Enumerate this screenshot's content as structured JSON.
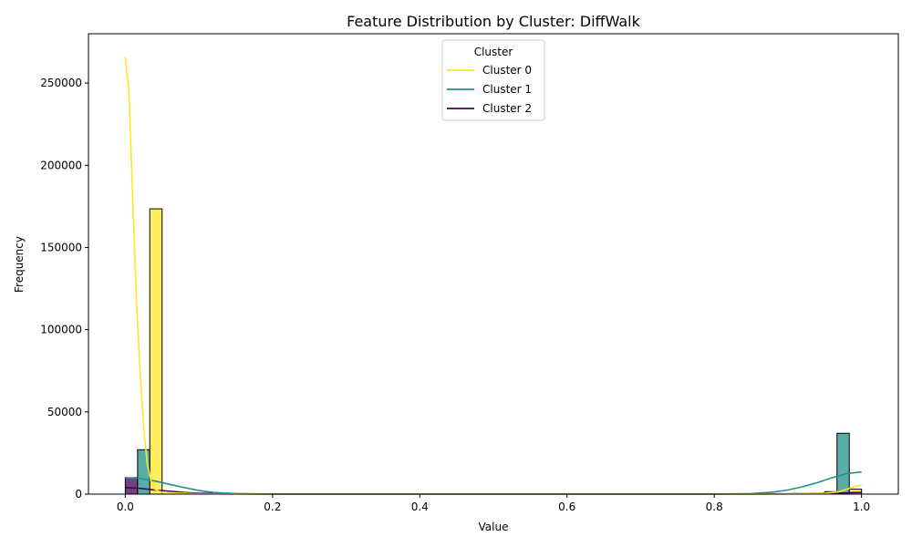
{
  "chart_data": {
    "type": "histogram",
    "title": "Feature Distribution by Cluster: DiffWalk",
    "xlabel": "Value",
    "ylabel": "Frequency",
    "xlim": [
      -0.05,
      1.05
    ],
    "ylim": [
      0,
      280000
    ],
    "x_ticks": [
      "0.0",
      "0.2",
      "0.4",
      "0.6",
      "0.8",
      "1.0"
    ],
    "y_ticks": [
      "0",
      "50000",
      "100000",
      "150000",
      "200000",
      "250000"
    ],
    "legend_title": "Cluster",
    "legend_position": "upper-center",
    "grid": false,
    "series": [
      {
        "name": "Cluster 0",
        "color": "#fde725",
        "bars": [
          {
            "x": 0.0333,
            "width": 0.0167,
            "value": 173500
          },
          {
            "x": 0.9833,
            "width": 0.0167,
            "value": 3000
          }
        ],
        "kde": [
          [
            0.0,
            266000
          ],
          [
            0.005,
            245000
          ],
          [
            0.01,
            180000
          ],
          [
            0.015,
            120000
          ],
          [
            0.02,
            75000
          ],
          [
            0.025,
            40000
          ],
          [
            0.03,
            18000
          ],
          [
            0.035,
            8000
          ],
          [
            0.04,
            3000
          ],
          [
            0.05,
            1000
          ],
          [
            0.1,
            200
          ],
          [
            0.2,
            0
          ],
          [
            0.8,
            0
          ],
          [
            0.9,
            100
          ],
          [
            0.95,
            500
          ],
          [
            0.97,
            1500
          ],
          [
            0.98,
            3000
          ],
          [
            0.99,
            4500
          ],
          [
            1.0,
            5500
          ]
        ]
      },
      {
        "name": "Cluster 1",
        "color": "#21918c",
        "bars": [
          {
            "x": 0.0167,
            "width": 0.0167,
            "value": 27000
          },
          {
            "x": 0.9667,
            "width": 0.0167,
            "value": 37000
          }
        ],
        "kde": [
          [
            0.0,
            10000
          ],
          [
            0.02,
            9500
          ],
          [
            0.04,
            8000
          ],
          [
            0.06,
            6000
          ],
          [
            0.08,
            4000
          ],
          [
            0.1,
            2200
          ],
          [
            0.12,
            1000
          ],
          [
            0.15,
            300
          ],
          [
            0.2,
            50
          ],
          [
            0.8,
            50
          ],
          [
            0.85,
            300
          ],
          [
            0.88,
            1200
          ],
          [
            0.9,
            2500
          ],
          [
            0.92,
            4500
          ],
          [
            0.94,
            7000
          ],
          [
            0.96,
            10000
          ],
          [
            0.98,
            12500
          ],
          [
            1.0,
            13500
          ]
        ]
      },
      {
        "name": "Cluster 2",
        "color": "#440154",
        "bars": [
          {
            "x": 0.0,
            "width": 0.0167,
            "value": 10000
          },
          {
            "x": 0.95,
            "width": 0.0167,
            "value": 1500
          },
          {
            "x": 0.9833,
            "width": 0.0167,
            "value": 1500
          }
        ],
        "kde": [
          [
            0.0,
            4000
          ],
          [
            0.02,
            3500
          ],
          [
            0.04,
            2500
          ],
          [
            0.06,
            1800
          ],
          [
            0.08,
            1000
          ],
          [
            0.1,
            500
          ],
          [
            0.15,
            150
          ],
          [
            0.2,
            30
          ],
          [
            0.8,
            30
          ],
          [
            0.9,
            200
          ],
          [
            0.95,
            600
          ],
          [
            1.0,
            900
          ]
        ]
      }
    ]
  }
}
